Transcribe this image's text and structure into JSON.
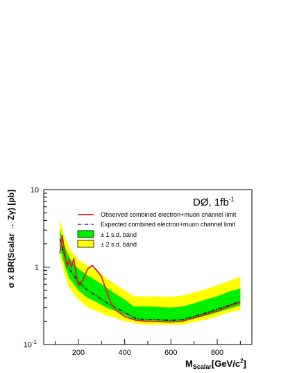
{
  "chart_data": {
    "type": "line",
    "title": "",
    "annotation": "DØ, 1fb",
    "annotation_sup": "-1",
    "xlabel_main": "M",
    "xlabel_sub": "Scalar",
    "xlabel_rest": "[GeV/c",
    "xlabel_sup": "2",
    "xlabel_end": "]",
    "ylabel": "σ x BR(Scalar → Zγ) [pb]",
    "xlim": [
      50,
      950
    ],
    "ylim": [
      0.1,
      10
    ],
    "y_scale": "log",
    "x_ticks": [
      {
        "value": 200,
        "label": "200"
      },
      {
        "value": 400,
        "label": "400"
      },
      {
        "value": 600,
        "label": "600"
      },
      {
        "value": 800,
        "label": "800"
      }
    ],
    "y_ticks": [
      {
        "value": 10,
        "label": "10"
      },
      {
        "value": 1,
        "label": "1"
      }
    ],
    "y_tick_bottom": {
      "value": 0.1,
      "label": "10",
      "sup": "-1"
    },
    "legend": [
      {
        "key": "observed",
        "label": "Observed combined electron+muon channel limit"
      },
      {
        "key": "expected",
        "label": "Expected combined electron+muon channel limit"
      },
      {
        "key": "band1",
        "label": "± 1 s.d. band"
      },
      {
        "key": "band2",
        "label": "± 2 s.d. band"
      }
    ],
    "colors": {
      "observed": "#e02020",
      "expected": "#000000",
      "band1": "#00ee00",
      "band2": "#ffff00"
    },
    "series": [
      {
        "name": "Observed combined electron+muon channel limit",
        "x": [
          120,
          130,
          140,
          150,
          160,
          170,
          180,
          190,
          200,
          220,
          240,
          260,
          280,
          300,
          320,
          340,
          360,
          400,
          450,
          500,
          600,
          650,
          700,
          750,
          800,
          850,
          900
        ],
        "y": [
          1.5,
          2.6,
          1.6,
          1.0,
          1.25,
          1.0,
          1.3,
          0.8,
          0.58,
          0.68,
          0.95,
          1.05,
          0.9,
          0.75,
          0.5,
          0.35,
          0.28,
          0.23,
          0.205,
          0.2,
          0.195,
          0.2,
          0.22,
          0.245,
          0.27,
          0.31,
          0.35
        ]
      },
      {
        "name": "Expected combined electron+muon channel limit",
        "x": [
          120,
          140,
          160,
          180,
          200,
          240,
          280,
          320,
          360,
          400,
          450,
          500,
          600,
          650,
          700,
          750,
          800,
          850,
          900
        ],
        "y": [
          2.3,
          1.4,
          0.95,
          0.78,
          0.65,
          0.5,
          0.42,
          0.35,
          0.3,
          0.26,
          0.215,
          0.21,
          0.205,
          0.21,
          0.23,
          0.255,
          0.285,
          0.32,
          0.36
        ]
      }
    ],
    "bands": [
      {
        "name": "± 2 s.d. band",
        "x": [
          120,
          140,
          160,
          180,
          200,
          240,
          280,
          320,
          360,
          400,
          440,
          450,
          500,
          600,
          650,
          700,
          750,
          800,
          850,
          900
        ],
        "upper": [
          4.2,
          2.5,
          1.8,
          1.45,
          1.25,
          1.05,
          0.9,
          0.72,
          0.6,
          0.5,
          0.42,
          0.42,
          0.42,
          0.41,
          0.43,
          0.47,
          0.52,
          0.58,
          0.66,
          0.75
        ],
        "lower": [
          1.4,
          0.8,
          0.55,
          0.45,
          0.38,
          0.3,
          0.27,
          0.24,
          0.22,
          0.2,
          0.19,
          0.185,
          0.18,
          0.18,
          0.18,
          0.195,
          0.21,
          0.23,
          0.26,
          0.28
        ]
      },
      {
        "name": "± 1 s.d. band",
        "x": [
          120,
          140,
          160,
          180,
          200,
          240,
          280,
          320,
          360,
          400,
          440,
          450,
          500,
          600,
          650,
          700,
          750,
          800,
          850,
          900
        ],
        "upper": [
          3.1,
          1.9,
          1.35,
          1.1,
          0.95,
          0.78,
          0.66,
          0.55,
          0.45,
          0.38,
          0.31,
          0.31,
          0.31,
          0.3,
          0.31,
          0.34,
          0.38,
          0.42,
          0.48,
          0.53
        ],
        "lower": [
          1.8,
          1.05,
          0.72,
          0.6,
          0.5,
          0.4,
          0.35,
          0.3,
          0.27,
          0.24,
          0.21,
          0.21,
          0.205,
          0.2,
          0.2,
          0.215,
          0.235,
          0.26,
          0.29,
          0.32
        ]
      }
    ]
  }
}
